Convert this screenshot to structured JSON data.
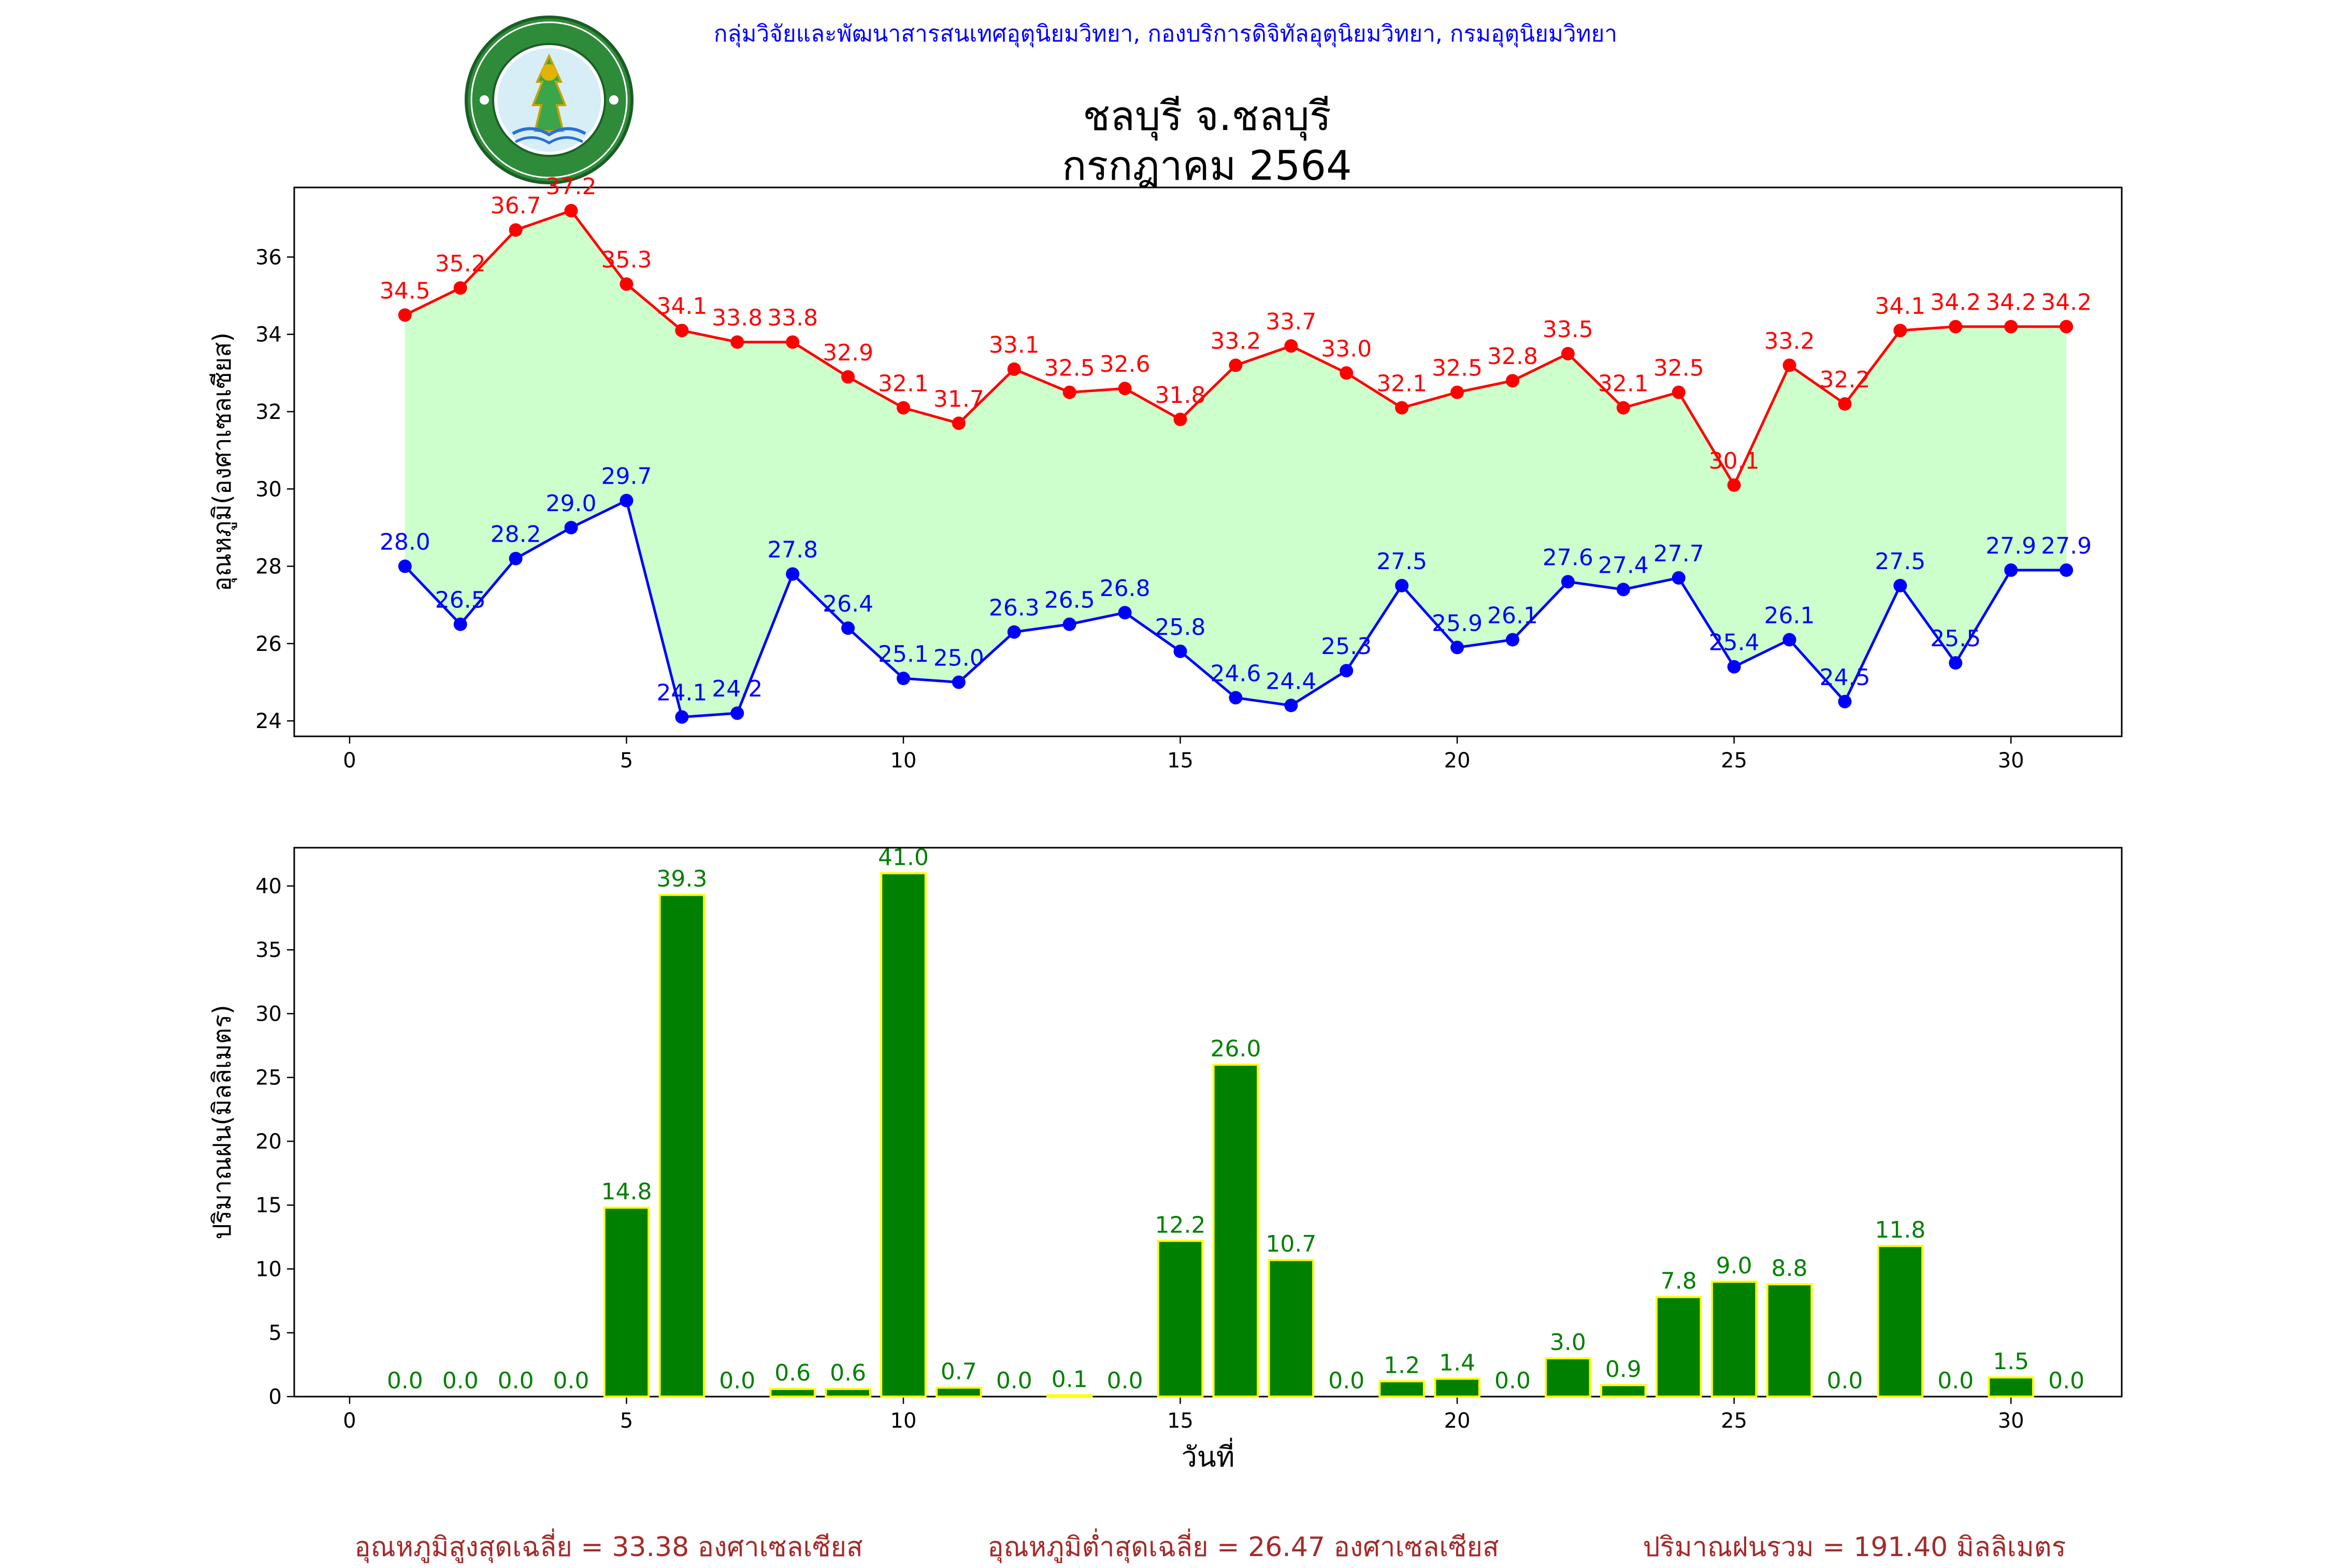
{
  "header": {
    "credit": "กลุ่มวิจัยและพัฒนาสารสนเทศอุตุนิยมวิทยา, กองบริการดิจิทัลอุตุนิยมวิทยา, กรมอุตุนิยมวิทยา",
    "title_line1": "ชลบุรี จ.ชลบุรี",
    "title_line2": "กรกฎาคม 2564",
    "logo_text": "กรมอุตุนิยมวิทยา METEOROLOGICAL DEPARTMENT"
  },
  "footer": {
    "avg_max": "อุณหภูมิสูงสุดเฉลี่ย = 33.38 องศาเซลเซียส",
    "avg_min": "อุณหภูมิต่ำสุดเฉลี่ย = 26.47 องศาเซลเซียส",
    "total_rain": "ปริมาณฝนรวม = 191.40 มิลลิเมตร"
  },
  "chart_data": [
    {
      "type": "line",
      "ylabel": "อุณหภูมิ(องศาเซลเซียส)",
      "xlim": [
        -1,
        32
      ],
      "ylim": [
        23.6,
        37.8
      ],
      "xticks": [
        0,
        5,
        10,
        15,
        20,
        25,
        30
      ],
      "yticks": [
        24,
        26,
        28,
        30,
        32,
        34,
        36
      ],
      "x": [
        1,
        2,
        3,
        4,
        5,
        6,
        7,
        8,
        9,
        10,
        11,
        12,
        13,
        14,
        15,
        16,
        17,
        18,
        19,
        20,
        21,
        22,
        23,
        24,
        25,
        26,
        27,
        28,
        29,
        30,
        31
      ],
      "series": [
        {
          "color": "#ff0000",
          "values": [
            34.5,
            35.2,
            36.7,
            37.2,
            35.3,
            34.1,
            33.8,
            33.8,
            32.9,
            32.1,
            31.7,
            33.1,
            32.5,
            32.6,
            31.8,
            33.2,
            33.7,
            33.0,
            32.1,
            32.5,
            32.8,
            33.5,
            32.1,
            32.5,
            30.1,
            33.2,
            32.2,
            34.1,
            34.2,
            34.2,
            34.2
          ]
        },
        {
          "color": "#0000ff",
          "values": [
            28.0,
            26.5,
            28.2,
            29.0,
            29.7,
            24.1,
            24.2,
            27.8,
            26.4,
            25.1,
            25.0,
            26.3,
            26.5,
            26.8,
            25.8,
            24.6,
            24.4,
            25.3,
            27.5,
            25.9,
            26.1,
            27.6,
            27.4,
            27.7,
            25.4,
            26.1,
            24.5,
            27.5,
            25.5,
            27.9,
            27.9
          ]
        }
      ],
      "fill_color": "#ccffcc",
      "grid": false
    },
    {
      "type": "bar",
      "xlabel": "วันที่",
      "ylabel": "ปริมาณฝน(มิลลิเมตร)",
      "xlim": [
        -1,
        32
      ],
      "ylim": [
        0,
        43
      ],
      "xticks": [
        0,
        5,
        10,
        15,
        20,
        25,
        30
      ],
      "yticks": [
        0,
        5,
        10,
        15,
        20,
        25,
        30,
        35,
        40
      ],
      "categories": [
        1,
        2,
        3,
        4,
        5,
        6,
        7,
        8,
        9,
        10,
        11,
        12,
        13,
        14,
        15,
        16,
        17,
        18,
        19,
        20,
        21,
        22,
        23,
        24,
        25,
        26,
        27,
        28,
        29,
        30,
        31
      ],
      "values": [
        0.0,
        0.0,
        0.0,
        0.0,
        14.8,
        39.3,
        0.0,
        0.6,
        0.6,
        41.0,
        0.7,
        0.0,
        0.1,
        0.0,
        12.2,
        26.0,
        10.7,
        0.0,
        1.2,
        1.4,
        0.0,
        3.0,
        0.9,
        7.8,
        9.0,
        8.8,
        0.0,
        11.8,
        0.0,
        1.5,
        0.0
      ],
      "bar_color": "#008000",
      "edge_color": "#ffff00",
      "label_color": "#008000",
      "grid": false
    }
  ]
}
